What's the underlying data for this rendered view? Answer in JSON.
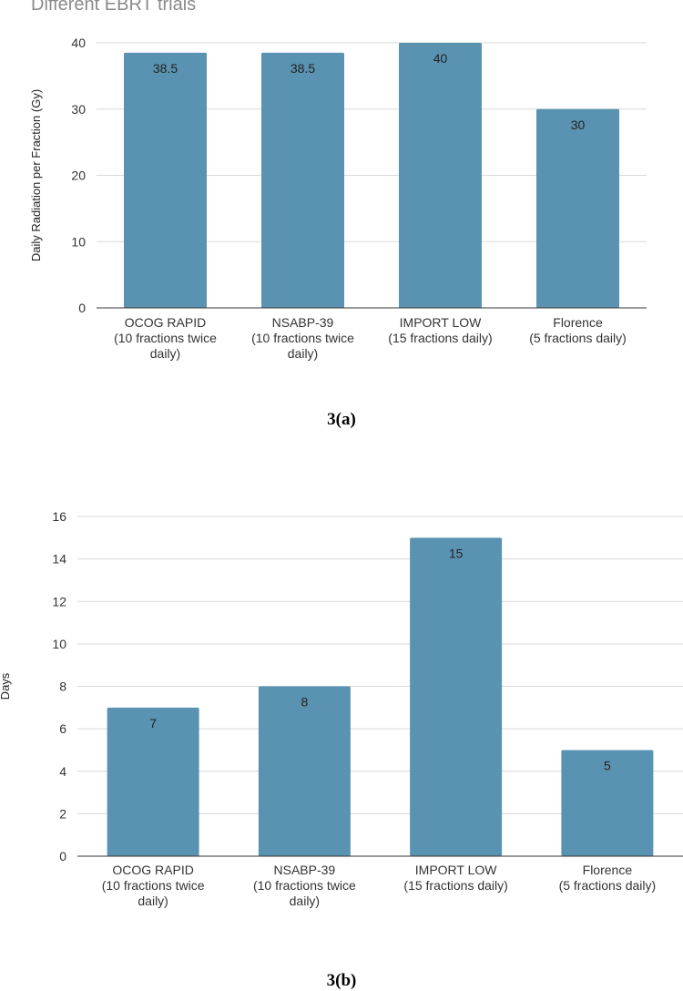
{
  "chart_data": [
    {
      "type": "bar",
      "title": "Different EBRT trials",
      "xlabel": "",
      "ylabel": "Daily Radiation per Fraction (Gy)",
      "categories": [
        [
          "OCOG RAPID",
          "(10 fractions twice",
          "daily)"
        ],
        [
          "NSABP-39",
          "(10 fractions twice",
          "daily)"
        ],
        [
          "IMPORT LOW",
          "(15 fractions daily)"
        ],
        [
          "Florence",
          "(5 fractions daily)"
        ]
      ],
      "values": [
        38.5,
        38.5,
        40,
        30
      ],
      "value_labels": [
        "38.5",
        "38.5",
        "40",
        "30"
      ],
      "ylim": [
        0,
        40
      ],
      "yticks": [
        0,
        10,
        20,
        30,
        40
      ],
      "grid": true,
      "bar_color": "#5a93b2"
    },
    {
      "type": "bar",
      "title": "",
      "xlabel": "",
      "ylabel": "Days",
      "categories": [
        [
          "OCOG RAPID",
          "(10 fractions twice",
          "daily)"
        ],
        [
          "NSABP-39",
          "(10 fractions twice",
          "daily)"
        ],
        [
          "IMPORT LOW",
          "(15 fractions daily)"
        ],
        [
          "Florence",
          "(5 fractions daily)"
        ]
      ],
      "values": [
        7,
        8,
        15,
        5
      ],
      "value_labels": [
        "7",
        "8",
        "15",
        "5"
      ],
      "ylim": [
        0,
        16
      ],
      "yticks": [
        0,
        2,
        4,
        6,
        8,
        10,
        12,
        14,
        16
      ],
      "grid": true,
      "bar_color": "#5a93b2"
    }
  ],
  "captions": {
    "a": "3(a)",
    "b": "3(b)"
  }
}
